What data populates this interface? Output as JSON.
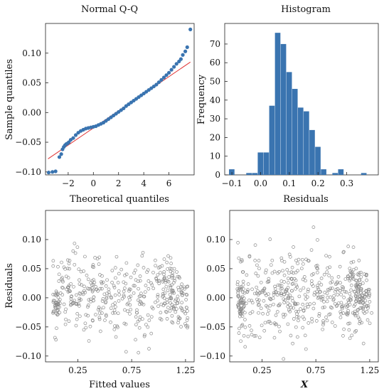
{
  "chart_data": [
    {
      "type": "scatter",
      "title": "Normal Q-Q",
      "xlabel": "Theoretical quantiles",
      "ylabel": "Sample quantiles",
      "xlim": [
        -3.8,
        8.0
      ],
      "ylim": [
        -0.105,
        0.15
      ],
      "xticks": [
        -2,
        0,
        2,
        4,
        6
      ],
      "xtick_labels": [
        "−2",
        "0",
        "2",
        "4",
        "6"
      ],
      "yticks": [
        -0.1,
        -0.05,
        0.0,
        0.05,
        0.1
      ],
      "ytick_labels": [
        "−0.10",
        "−0.05",
        "0.00",
        "0.05",
        "0.10"
      ],
      "point_color": "#3a74b0",
      "reference_line": {
        "x": [
          -3.6,
          7.7
        ],
        "y": [
          -0.078,
          0.085
        ],
        "color": "#e03030"
      },
      "points": {
        "x": [
          -3.55,
          -3.25,
          -3.0,
          -2.7,
          -2.55,
          -2.45,
          -2.35,
          -2.25,
          -2.15,
          -2.05,
          -1.95,
          -1.8,
          -1.6,
          -1.4,
          -1.2,
          -1.0,
          -0.8,
          -0.6,
          -0.4,
          -0.2,
          0.0,
          0.2,
          0.4,
          0.6,
          0.8,
          1.0,
          1.2,
          1.4,
          1.6,
          1.8,
          2.0,
          2.2,
          2.4,
          2.6,
          2.8,
          3.0,
          3.2,
          3.4,
          3.6,
          3.8,
          4.0,
          4.2,
          4.4,
          4.6,
          4.8,
          5.0,
          5.2,
          5.4,
          5.6,
          5.8,
          6.0,
          6.2,
          6.4,
          6.6,
          6.8,
          6.95,
          7.1,
          7.3,
          7.45,
          7.7
        ],
        "y": [
          -0.101,
          -0.1,
          -0.099,
          -0.075,
          -0.07,
          -0.062,
          -0.058,
          -0.055,
          -0.053,
          -0.052,
          -0.05,
          -0.046,
          -0.043,
          -0.038,
          -0.034,
          -0.031,
          -0.029,
          -0.027,
          -0.026,
          -0.025,
          -0.024,
          -0.023,
          -0.021,
          -0.019,
          -0.017,
          -0.014,
          -0.011,
          -0.008,
          -0.005,
          -0.002,
          0.001,
          0.004,
          0.007,
          0.011,
          0.014,
          0.017,
          0.02,
          0.023,
          0.026,
          0.029,
          0.032,
          0.035,
          0.038,
          0.041,
          0.044,
          0.047,
          0.051,
          0.055,
          0.059,
          0.063,
          0.067,
          0.072,
          0.077,
          0.082,
          0.086,
          0.09,
          0.097,
          0.103,
          0.11,
          0.14
        ]
      }
    },
    {
      "type": "bar",
      "title": "Histogram",
      "xlabel": "Residuals",
      "ylabel": "Frequency",
      "xlim": [
        -0.125,
        0.41
      ],
      "ylim": [
        0,
        81
      ],
      "xticks": [
        -0.1,
        0.0,
        0.1,
        0.2,
        0.3
      ],
      "xtick_labels": [
        "−0.1",
        "0.0",
        "0.1",
        "0.2",
        "0.3"
      ],
      "yticks": [
        0,
        10,
        20,
        30,
        40,
        50,
        60,
        70
      ],
      "ytick_labels": [
        "0",
        "10",
        "20",
        "30",
        "40",
        "50",
        "60",
        "70"
      ],
      "bar_color": "#3a74b0",
      "bin_width": 0.02,
      "bins_left": [
        -0.11,
        -0.09,
        -0.07,
        -0.05,
        -0.03,
        -0.01,
        0.01,
        0.03,
        0.05,
        0.07,
        0.09,
        0.11,
        0.13,
        0.15,
        0.17,
        0.19,
        0.21,
        0.23,
        0.25,
        0.27,
        0.29,
        0.31,
        0.33,
        0.35,
        0.37
      ],
      "values": [
        3,
        0,
        0,
        1,
        1,
        12,
        12,
        37,
        76,
        70,
        55,
        46,
        36,
        34,
        24,
        15,
        3,
        0,
        1,
        3,
        0,
        0,
        0,
        1,
        0
      ]
    },
    {
      "type": "scatter",
      "title": "",
      "xlabel": "Fitted values",
      "ylabel": "Residuals",
      "xlim": [
        -0.05,
        1.33
      ],
      "ylim": [
        -0.11,
        0.15
      ],
      "xticks": [
        0.25,
        0.75,
        1.25
      ],
      "xtick_labels": [
        "0.25",
        "0.75",
        "1.25"
      ],
      "yticks": [
        -0.1,
        -0.05,
        0.0,
        0.05,
        0.1
      ],
      "ytick_labels": [
        "−0.10",
        "−0.05",
        "0.00",
        "0.05",
        "0.10"
      ],
      "point_color": "#8a8a8a",
      "n_points": 460,
      "seed": 7
    },
    {
      "type": "scatter",
      "title": "",
      "xlabel": "X",
      "ylabel": "",
      "xlim": [
        -0.05,
        1.33
      ],
      "ylim": [
        -0.11,
        0.15
      ],
      "xticks": [
        0.25,
        0.75,
        1.25
      ],
      "xtick_labels": [
        "0.25",
        "0.75",
        "1.25"
      ],
      "yticks": [
        -0.1,
        -0.05,
        0.0,
        0.05,
        0.1
      ],
      "ytick_labels": [
        "−0.10",
        "−0.05",
        "0.00",
        "0.05",
        "0.10"
      ],
      "point_color": "#8a8a8a",
      "n_points": 560,
      "seed": 13
    }
  ]
}
